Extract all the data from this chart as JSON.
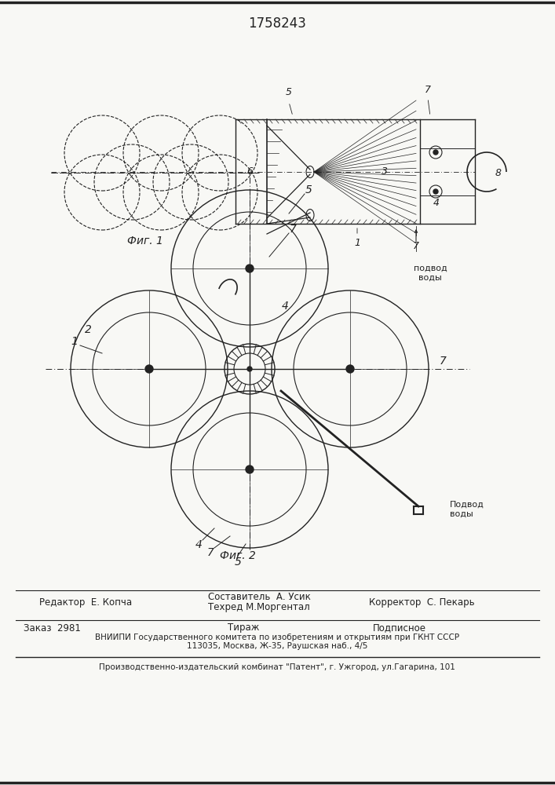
{
  "title": "1758243",
  "fig1_label": "Фиг. 1",
  "fig2_label": "Фиг. 2",
  "editor_line": "Редактор  Е. Копча",
  "composer_line1": "Составитель  А. Усик",
  "composer_line2": "Техред М.Моргентал",
  "corrector_line": "Корректор  С. Пекарь",
  "order_line": "Заказ  2981",
  "tirazh_line": "Тираж",
  "podpisnoe_line": "Подписное",
  "vniiipi_line": "ВНИИПИ Государственного комитета по изобретениям и открытиям при ГКНТ СССР",
  "address_line": "113035, Москва, Ж-35, Раушская наб., 4/5",
  "factory_line": "Производственно-издательский комбинат \"Патент\", г. Ужгород, ул.Гагарина, 101",
  "water_supply1": "подвод\nводы",
  "water_supply2": "Подвод\nводы",
  "bg_color": "#f8f8f5",
  "line_color": "#222222"
}
